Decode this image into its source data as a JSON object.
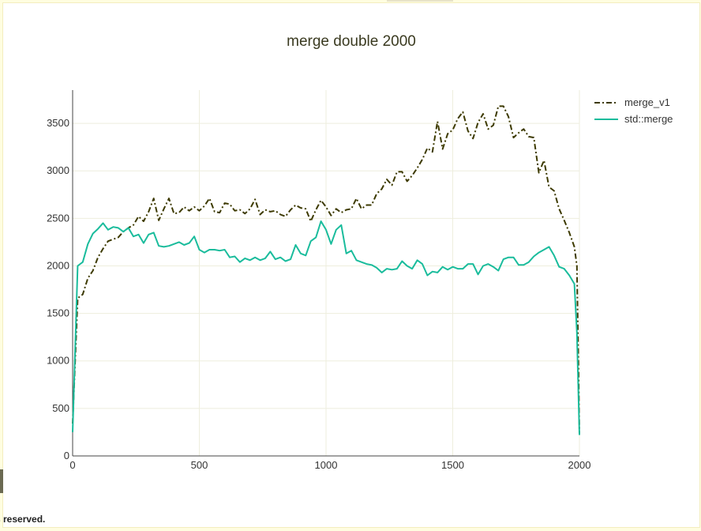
{
  "page": {
    "footer_fragment": "s reserved."
  },
  "chart_data": {
    "type": "line",
    "title": "merge double 2000",
    "xlabel": "",
    "ylabel": "",
    "xlim": [
      0,
      2000
    ],
    "ylim": [
      0,
      3850
    ],
    "xticks": [
      0,
      500,
      1000,
      1500,
      2000
    ],
    "yticks": [
      0,
      500,
      1000,
      1500,
      2000,
      2500,
      3000,
      3500
    ],
    "grid": true,
    "legend_position": "top-right",
    "series": [
      {
        "name": "merge_v1",
        "color": "#3d3a00",
        "dash": "dashdot",
        "x": [
          0,
          20,
          40,
          60,
          80,
          100,
          120,
          140,
          160,
          180,
          200,
          220,
          240,
          260,
          280,
          300,
          320,
          340,
          360,
          380,
          400,
          420,
          440,
          460,
          480,
          500,
          520,
          540,
          560,
          580,
          600,
          620,
          640,
          660,
          680,
          700,
          720,
          740,
          760,
          780,
          800,
          820,
          840,
          860,
          880,
          900,
          920,
          940,
          960,
          980,
          1000,
          1020,
          1040,
          1060,
          1080,
          1100,
          1120,
          1140,
          1160,
          1180,
          1200,
          1220,
          1240,
          1260,
          1280,
          1300,
          1320,
          1340,
          1360,
          1380,
          1400,
          1420,
          1440,
          1460,
          1480,
          1500,
          1520,
          1540,
          1560,
          1580,
          1600,
          1620,
          1640,
          1660,
          1680,
          1700,
          1720,
          1740,
          1760,
          1780,
          1800,
          1820,
          1840,
          1860,
          1880,
          1900,
          1920,
          1940,
          1960,
          1980,
          1990,
          2000
        ],
        "y": [
          340,
          1660,
          1700,
          1870,
          1950,
          2090,
          2180,
          2260,
          2280,
          2300,
          2360,
          2400,
          2430,
          2520,
          2470,
          2570,
          2710,
          2480,
          2600,
          2710,
          2550,
          2560,
          2620,
          2580,
          2620,
          2580,
          2630,
          2710,
          2570,
          2560,
          2660,
          2650,
          2580,
          2590,
          2550,
          2600,
          2700,
          2540,
          2590,
          2570,
          2580,
          2540,
          2520,
          2590,
          2640,
          2610,
          2600,
          2470,
          2590,
          2690,
          2620,
          2530,
          2600,
          2560,
          2590,
          2600,
          2710,
          2600,
          2640,
          2640,
          2760,
          2810,
          2910,
          2850,
          2990,
          2990,
          2890,
          2950,
          3030,
          3120,
          3240,
          3200,
          3520,
          3230,
          3390,
          3430,
          3550,
          3620,
          3420,
          3340,
          3510,
          3600,
          3440,
          3480,
          3680,
          3680,
          3570,
          3350,
          3400,
          3440,
          3360,
          3350,
          2980,
          3110,
          2830,
          2790,
          2600,
          2480,
          2350,
          2200,
          2000,
          230
        ]
      },
      {
        "name": "std::merge",
        "color": "#1abc9c",
        "dash": "solid",
        "x": [
          0,
          20,
          40,
          60,
          80,
          100,
          120,
          140,
          160,
          180,
          200,
          220,
          240,
          260,
          280,
          300,
          320,
          340,
          360,
          380,
          400,
          420,
          440,
          460,
          480,
          500,
          520,
          540,
          560,
          580,
          600,
          620,
          640,
          660,
          680,
          700,
          720,
          740,
          760,
          780,
          800,
          820,
          840,
          860,
          880,
          900,
          920,
          940,
          960,
          980,
          1000,
          1020,
          1040,
          1060,
          1080,
          1100,
          1120,
          1140,
          1160,
          1180,
          1200,
          1220,
          1240,
          1260,
          1280,
          1300,
          1320,
          1340,
          1360,
          1380,
          1400,
          1420,
          1440,
          1460,
          1480,
          1500,
          1520,
          1540,
          1560,
          1580,
          1600,
          1620,
          1640,
          1660,
          1680,
          1700,
          1720,
          1740,
          1760,
          1780,
          1800,
          1820,
          1840,
          1860,
          1880,
          1900,
          1920,
          1940,
          1960,
          1980,
          1990,
          2000
        ],
        "y": [
          250,
          2000,
          2040,
          2230,
          2340,
          2390,
          2450,
          2380,
          2410,
          2400,
          2360,
          2400,
          2310,
          2330,
          2240,
          2330,
          2350,
          2210,
          2200,
          2210,
          2230,
          2250,
          2220,
          2240,
          2310,
          2170,
          2140,
          2170,
          2170,
          2160,
          2170,
          2090,
          2100,
          2040,
          2080,
          2060,
          2090,
          2060,
          2080,
          2150,
          2070,
          2090,
          2050,
          2070,
          2220,
          2130,
          2110,
          2260,
          2300,
          2470,
          2380,
          2230,
          2380,
          2430,
          2130,
          2160,
          2060,
          2040,
          2020,
          2010,
          1980,
          1930,
          1970,
          1960,
          1970,
          2050,
          2000,
          1970,
          2060,
          2020,
          1900,
          1940,
          1930,
          1990,
          1960,
          1990,
          1970,
          1970,
          2020,
          2020,
          1910,
          2000,
          2020,
          1990,
          1950,
          2070,
          2090,
          2090,
          2010,
          2010,
          2040,
          2100,
          2140,
          2170,
          2200,
          2110,
          1990,
          1970,
          1900,
          1810,
          1300,
          220
        ]
      }
    ]
  }
}
